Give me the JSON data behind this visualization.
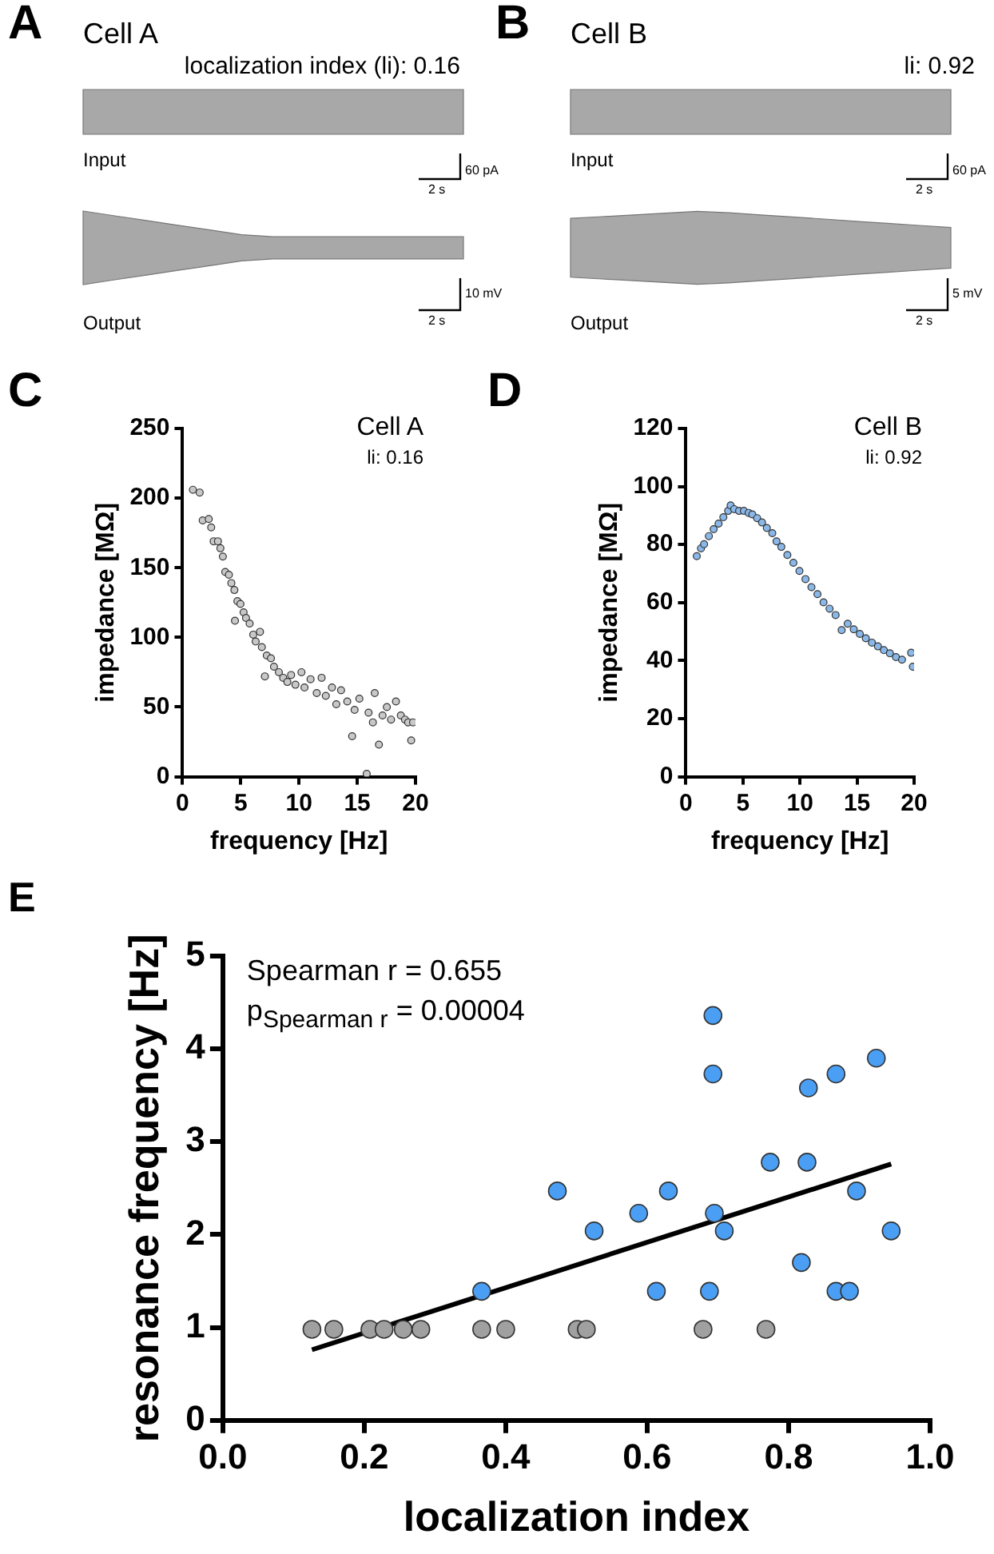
{
  "chart_data": [
    {
      "type": "other",
      "title": "Cell A",
      "subtitle": "localization index (li): 0.16",
      "annotations": [
        "A",
        "Input",
        "60 pA",
        "2 s",
        "Output",
        "10 mV",
        "2 s"
      ]
    },
    {
      "type": "other",
      "title": "Cell B",
      "subtitle": "li: 0.92",
      "annotations": [
        "B",
        "Input",
        "60 pA",
        "2 s",
        "Output",
        "5 mV",
        "2 s"
      ]
    },
    {
      "type": "scatter",
      "xlabel": "frequency [Hz]",
      "ylabel": "impedance [MΩ]",
      "xlim": [
        0,
        20
      ],
      "ylim": [
        0,
        250
      ],
      "xticks": [
        0,
        5,
        10,
        15,
        20
      ],
      "yticks": [
        0,
        50,
        100,
        150,
        200,
        250
      ],
      "grid": false,
      "marker": "circle",
      "annotations": [
        "C",
        "Cell A",
        "li: 0.16"
      ],
      "series": [
        {
          "color": "#c8c8c8",
          "x": [
            0.89,
            1.47,
            1.73,
            2.25,
            2.46,
            2.67,
            3.04,
            3.25,
            3.46,
            3.67,
            3.98,
            4.19,
            4.45,
            4.5,
            4.71,
            4.97,
            5.24,
            5.45,
            5.76,
            6.07,
            6.28,
            6.65,
            6.81,
            7.07,
            7.23,
            7.59,
            7.85,
            8.27,
            8.64,
            9.0,
            9.32,
            9.69,
            10.21,
            10.47,
            10.99,
            11.52,
            11.94,
            12.3,
            12.83,
            13.2,
            13.61,
            14.14,
            14.56,
            14.77,
            15.18,
            15.81,
            15.97,
            16.34,
            16.5,
            16.86,
            17.17,
            17.54,
            17.9,
            18.32,
            18.74,
            19.1,
            19.37,
            19.63,
            19.79
          ],
          "values": [
            206,
            204,
            184,
            185,
            179,
            169,
            169,
            164,
            158,
            147,
            145,
            139,
            134,
            112,
            126,
            124,
            118,
            114,
            110,
            102,
            97,
            104,
            93,
            72,
            87,
            85,
            79,
            75,
            71,
            68,
            73,
            66,
            75,
            64,
            70,
            60,
            71,
            58,
            64,
            52,
            62,
            54,
            29,
            48,
            56,
            2,
            46,
            39,
            60,
            23,
            44,
            50,
            41,
            54,
            44,
            41,
            39,
            26,
            39
          ]
        }
      ]
    },
    {
      "type": "scatter",
      "xlabel": "frequency [Hz]",
      "ylabel": "impedance [MΩ]",
      "xlim": [
        0,
        20
      ],
      "ylim": [
        0,
        120
      ],
      "xticks": [
        0,
        5,
        10,
        15,
        20
      ],
      "yticks": [
        0,
        20,
        40,
        60,
        80,
        100,
        120
      ],
      "grid": false,
      "marker": "circle",
      "annotations": [
        "D",
        "Cell B",
        "li: 0.92"
      ],
      "series": [
        {
          "color": "#8ab8e8",
          "x": [
            0.95,
            1.32,
            1.59,
            2.01,
            2.43,
            2.86,
            3.28,
            3.7,
            3.92,
            4.23,
            4.66,
            5.08,
            5.5,
            5.82,
            6.24,
            6.67,
            7.09,
            7.57,
            7.94,
            8.36,
            8.89,
            9.42,
            9.95,
            10.48,
            11.0,
            11.53,
            12.06,
            12.59,
            13.12,
            13.65,
            14.18,
            14.71,
            15.24,
            15.77,
            16.3,
            16.83,
            17.35,
            17.88,
            18.41,
            18.94,
            19.74,
            19.89
          ],
          "values": [
            76,
            78.7,
            80.1,
            82.9,
            85.3,
            87.2,
            89.4,
            91.6,
            93.5,
            92.2,
            91.6,
            91.6,
            90.9,
            90.4,
            89.1,
            87.6,
            85.7,
            83.9,
            81.1,
            79.2,
            76.4,
            73.7,
            70.9,
            68.1,
            65.3,
            62.9,
            60.1,
            57.9,
            55.7,
            50.5,
            52.7,
            50.8,
            49.2,
            47.7,
            46.2,
            44.9,
            43.6,
            42.5,
            41.2,
            40.3,
            42.7,
            37.9
          ]
        }
      ]
    },
    {
      "type": "scatter",
      "xlabel": "localization index",
      "ylabel": "resonance frequency [Hz]",
      "xlim": [
        0,
        1
      ],
      "ylim": [
        0,
        5
      ],
      "xticks": [
        {
          "value": 0,
          "label": "0.0"
        },
        {
          "value": 0.2,
          "label": "0.2"
        },
        {
          "value": 0.4,
          "label": "0.4"
        },
        {
          "value": 0.6,
          "label": "0.6"
        },
        {
          "value": 0.8,
          "label": "0.8"
        },
        {
          "value": 1,
          "label": "1.0"
        }
      ],
      "yticks": [
        0,
        1,
        2,
        3,
        4,
        5
      ],
      "grid": false,
      "marker": "circle",
      "annotations": [
        "E",
        "Spearman r = 0.655",
        "p$_{Spearman r}$ = 0.00004"
      ],
      "series": [
        {
          "color": "#a0a0a0",
          "x": [
            0.126,
            0.157,
            0.208,
            0.228,
            0.255,
            0.28,
            0.366,
            0.4,
            0.501,
            0.514,
            0.679,
            0.768
          ],
          "values": [
            0.98,
            0.98,
            0.98,
            0.98,
            0.98,
            0.98,
            0.98,
            0.98,
            0.98,
            0.98,
            0.98,
            0.98
          ]
        },
        {
          "color": "#4a9ff5",
          "x": [
            0.693,
            0.693,
            0.924,
            0.867,
            0.828,
            0.774,
            0.826,
            0.473,
            0.63,
            0.896,
            0.588,
            0.695,
            0.525,
            0.709,
            0.945,
            0.818,
            0.366,
            0.613,
            0.688,
            0.867,
            0.886
          ],
          "values": [
            4.36,
            3.73,
            3.9,
            3.73,
            3.58,
            2.78,
            2.78,
            2.47,
            2.47,
            2.47,
            2.23,
            2.23,
            2.04,
            2.04,
            2.04,
            1.7,
            1.39,
            1.39,
            1.39,
            1.39,
            1.39
          ]
        },
        {
          "type": "line",
          "color": "#000000",
          "marker": "none",
          "x": [
            0.126,
            0.945
          ],
          "values": [
            0.76,
            2.76
          ]
        }
      ]
    }
  ]
}
